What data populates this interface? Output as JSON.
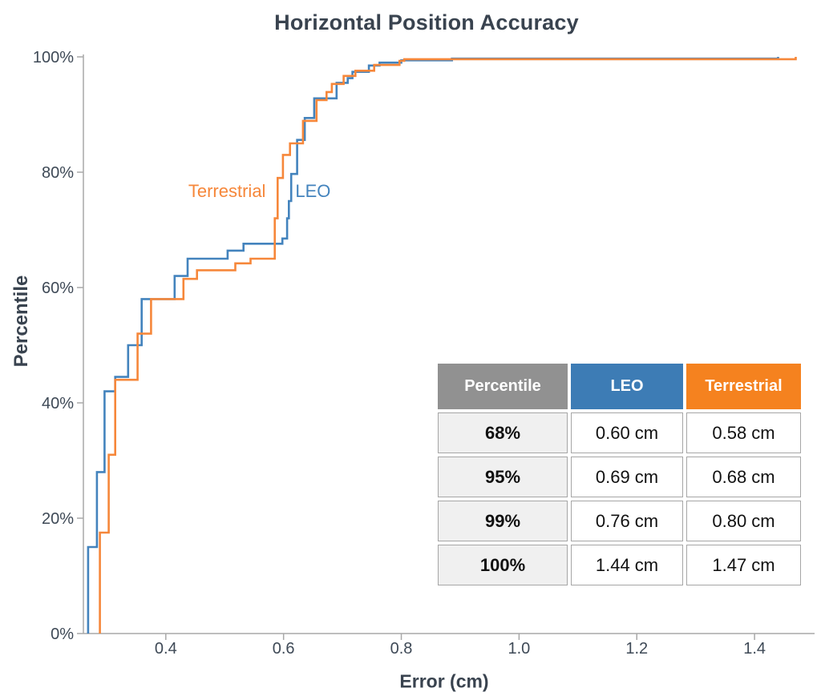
{
  "chart_data": {
    "type": "line",
    "subtype": "step-cdf",
    "title": "Horizontal Position Accuracy",
    "xlabel": "Error (cm)",
    "ylabel": "Percentile",
    "xlim": [
      0.26,
      1.487
    ],
    "ylim": [
      0,
      100
    ],
    "grid": false,
    "legend_position": "inline-labels-on-curves",
    "x_tick_values": [
      0.4,
      0.6,
      0.8,
      1.0,
      1.2,
      1.4
    ],
    "x_tick_labels": [
      "0.4",
      "0.6",
      "0.8",
      "1.0",
      "1.2",
      "1.4"
    ],
    "y_tick_values": [
      0,
      20,
      40,
      60,
      80,
      100
    ],
    "y_tick_labels": [
      "0%",
      "20%",
      "40%",
      "60%",
      "80%",
      "100%"
    ],
    "axis_color": "#A8A8A8",
    "text_color": "#3E4956",
    "series": [
      {
        "name": "LEO",
        "color": "#4383BD",
        "steps_note": "pairs of [error_cm, cumulative_percentile]; curve jumps to the percentile at that error",
        "steps": [
          [
            0.268,
            15
          ],
          [
            0.283,
            28
          ],
          [
            0.296,
            42
          ],
          [
            0.314,
            44.5
          ],
          [
            0.336,
            50
          ],
          [
            0.359,
            58
          ],
          [
            0.415,
            62
          ],
          [
            0.437,
            65
          ],
          [
            0.505,
            66.4
          ],
          [
            0.532,
            67.6
          ],
          [
            0.598,
            68.5
          ],
          [
            0.606,
            72
          ],
          [
            0.609,
            75
          ],
          [
            0.613,
            79.7
          ],
          [
            0.623,
            85.6
          ],
          [
            0.636,
            89.4
          ],
          [
            0.652,
            92.8
          ],
          [
            0.69,
            95.5
          ],
          [
            0.709,
            96.3
          ],
          [
            0.717,
            97.4
          ],
          [
            0.745,
            98.5
          ],
          [
            0.763,
            99.0
          ],
          [
            0.8,
            99.4
          ],
          [
            0.886,
            99.7
          ],
          [
            1.44,
            100
          ]
        ]
      },
      {
        "name": "Terrestrial",
        "color": "#F6873A",
        "steps": [
          [
            0.288,
            17.5
          ],
          [
            0.303,
            31
          ],
          [
            0.314,
            44
          ],
          [
            0.352,
            52
          ],
          [
            0.375,
            58
          ],
          [
            0.43,
            61.5
          ],
          [
            0.453,
            63
          ],
          [
            0.518,
            64.2
          ],
          [
            0.544,
            65
          ],
          [
            0.585,
            72
          ],
          [
            0.59,
            79
          ],
          [
            0.599,
            83
          ],
          [
            0.611,
            85
          ],
          [
            0.633,
            88.9
          ],
          [
            0.656,
            92.5
          ],
          [
            0.673,
            93.9
          ],
          [
            0.682,
            95.3
          ],
          [
            0.702,
            96.7
          ],
          [
            0.722,
            97.6
          ],
          [
            0.754,
            98.6
          ],
          [
            0.797,
            99.3
          ],
          [
            0.805,
            99.6
          ],
          [
            1.47,
            100
          ]
        ]
      }
    ],
    "annotations": [
      {
        "text": "Terrestrial",
        "color": "#F6873A",
        "x": 0.504,
        "pct": 76.8
      },
      {
        "text": "LEO",
        "color": "#4383BD",
        "x": 0.65,
        "pct": 76.8
      }
    ]
  },
  "table": {
    "headers": [
      {
        "label": "Percentile",
        "bg": "#919191"
      },
      {
        "label": "LEO",
        "bg": "#3D7CB5"
      },
      {
        "label": "Terrestrial",
        "bg": "#F5821F"
      }
    ],
    "rows": [
      [
        "68%",
        "0.60 cm",
        "0.58 cm"
      ],
      [
        "95%",
        "0.69 cm",
        "0.68 cm"
      ],
      [
        "99%",
        "0.76 cm",
        "0.80 cm"
      ],
      [
        "100%",
        "1.44 cm",
        "1.47 cm"
      ]
    ]
  }
}
